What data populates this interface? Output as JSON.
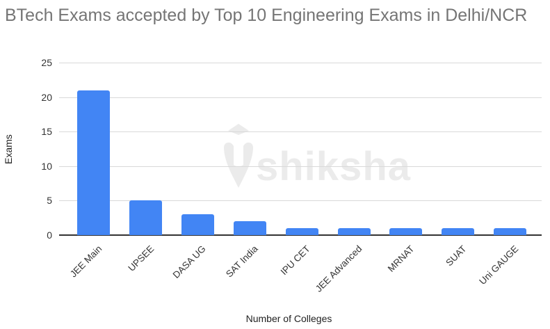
{
  "title": "BTech Exams accepted by Top 10 Engineering Exams in Delhi/NCR",
  "watermark": "shiksha",
  "chart_data": {
    "type": "bar",
    "title": "BTech Exams accepted by Top 10 Engineering Exams in Delhi/NCR",
    "xlabel": "Number of Colleges",
    "ylabel": "Exams",
    "categories": [
      "JEE Main",
      "UPSEE",
      "DASA UG",
      "SAT India",
      "IPU CET",
      "JEE Advanced",
      "MRNAT",
      "SUAT",
      "Uni GAUGE"
    ],
    "values": [
      21,
      5,
      3,
      2,
      1,
      1,
      1,
      1,
      1
    ],
    "ylim": [
      0,
      25
    ],
    "yticks": [
      "0",
      "5",
      "10",
      "15",
      "20",
      "25"
    ],
    "grid": true,
    "legend": "none",
    "bar_color": "#4285f4"
  }
}
